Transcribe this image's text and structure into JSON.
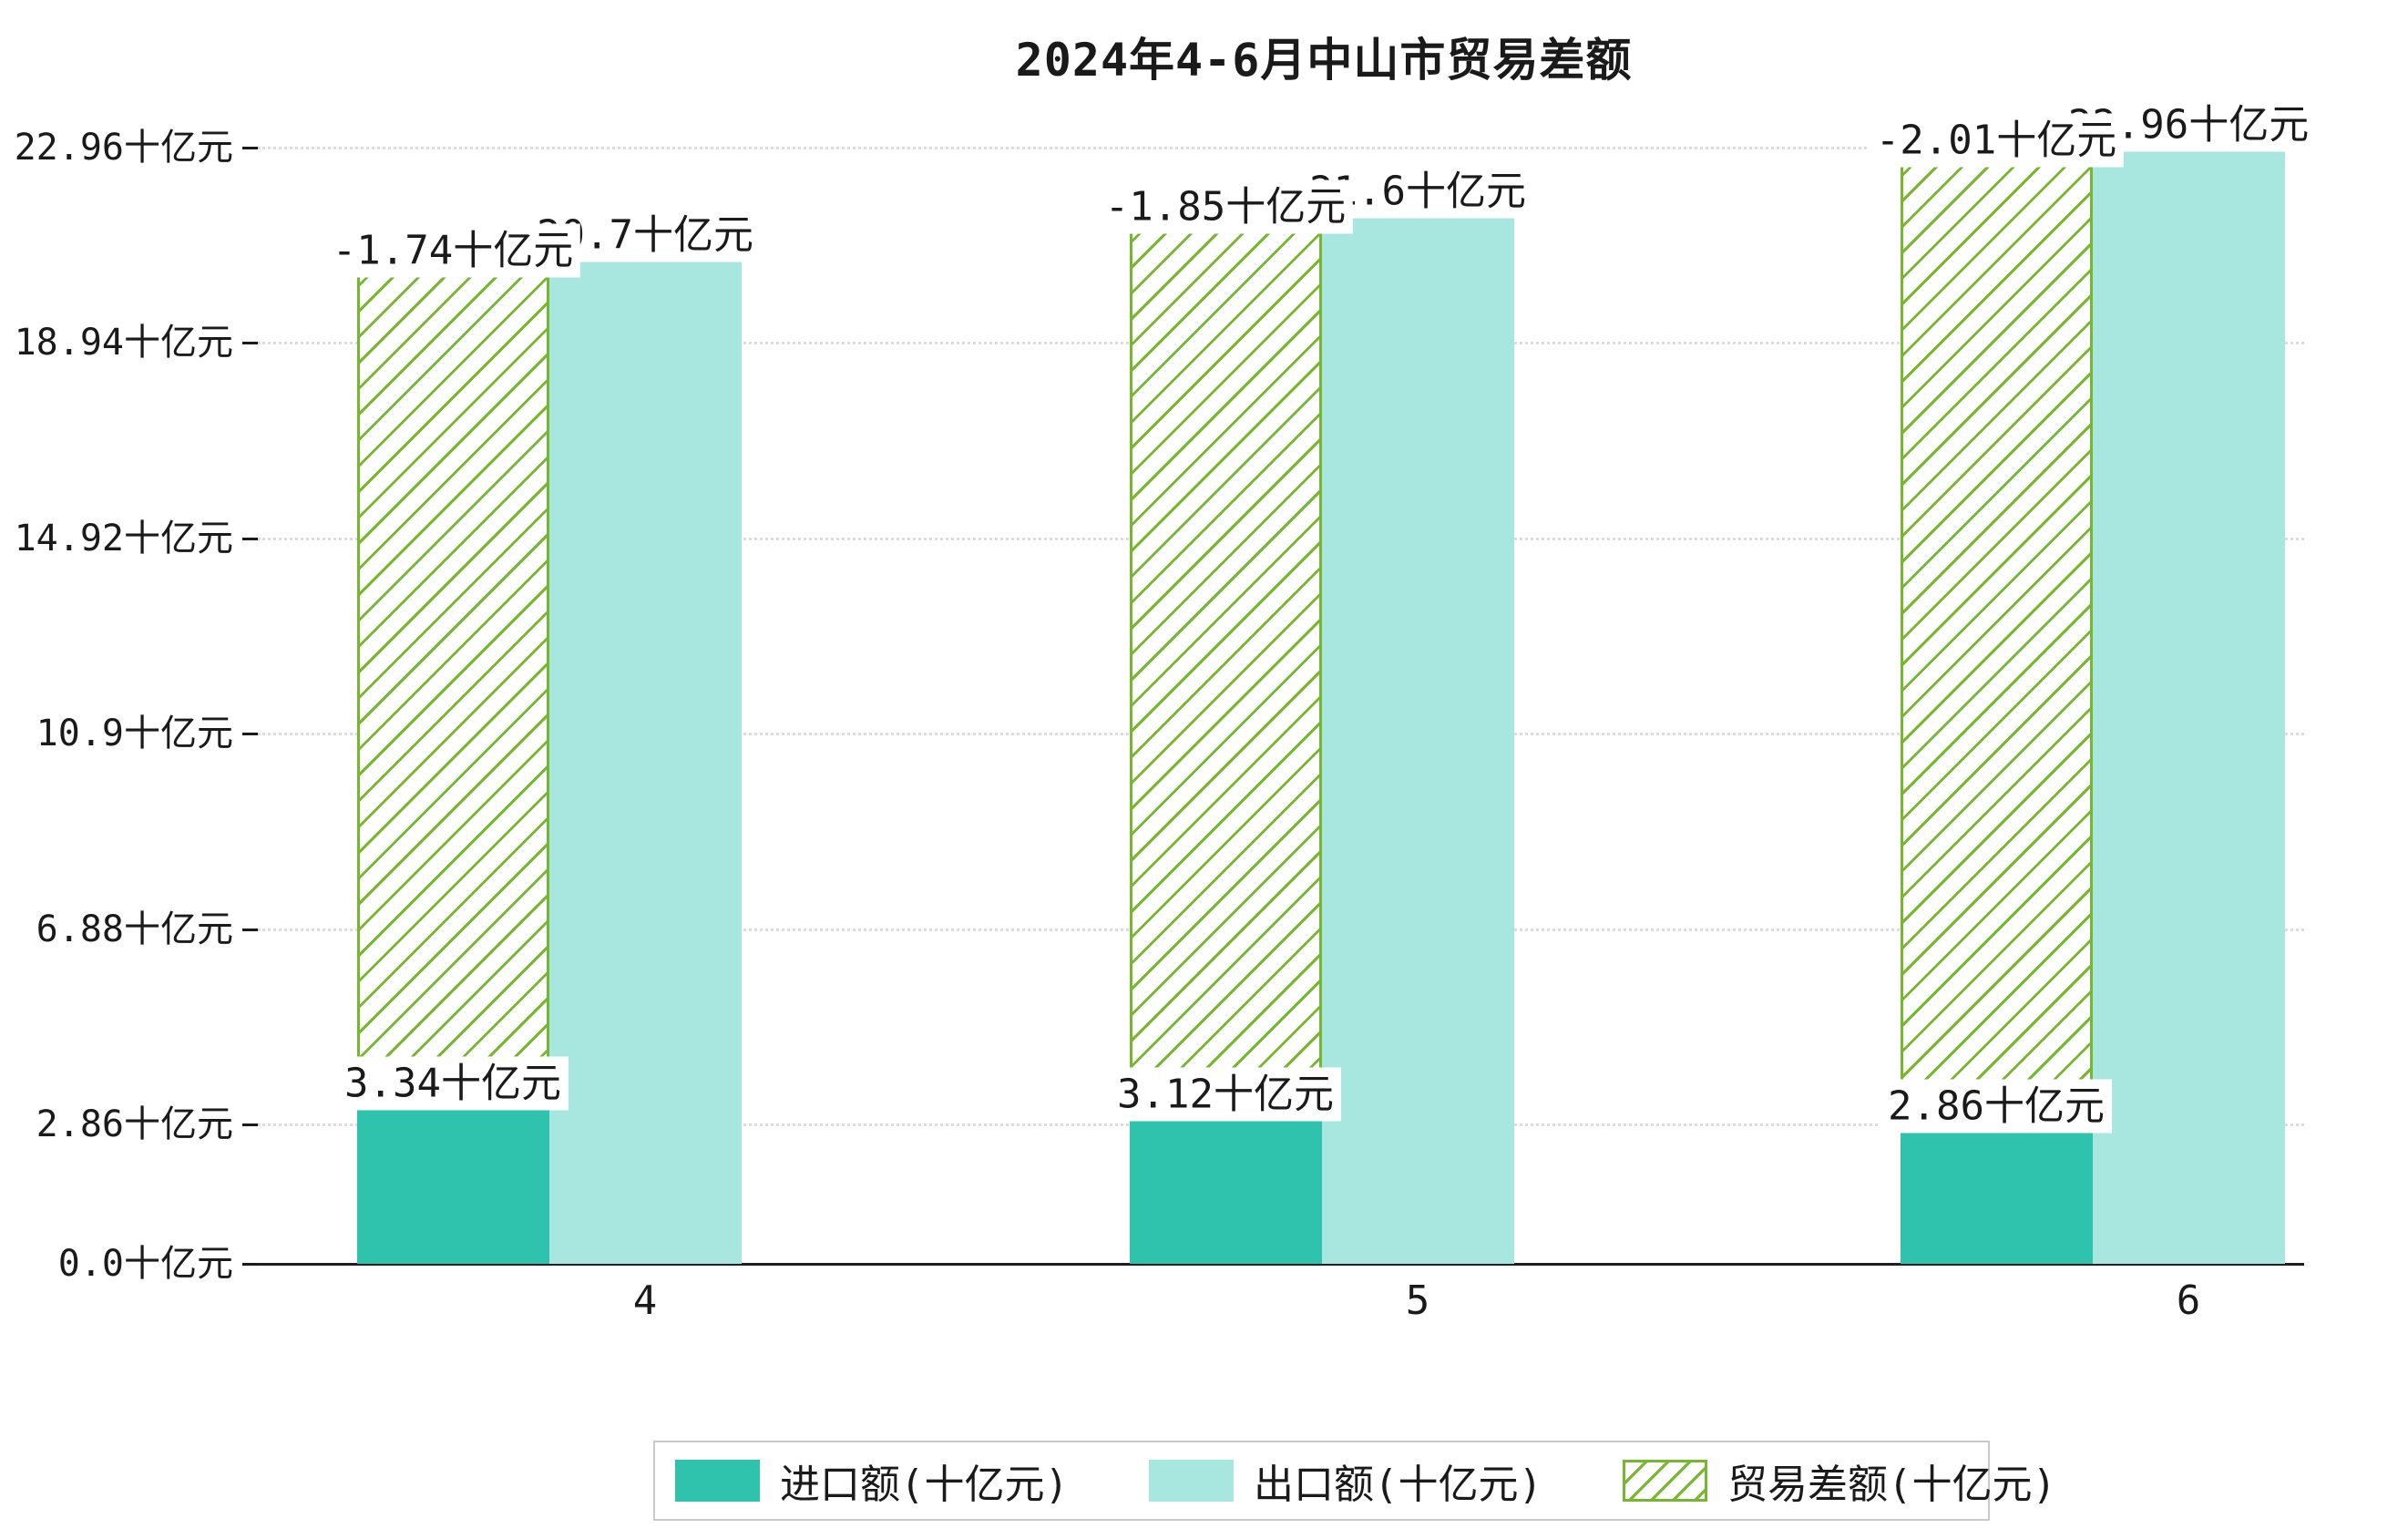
{
  "chart_data": {
    "type": "bar",
    "title": "2024年4-6月中山市贸易差额",
    "categories": [
      "4",
      "5",
      "6"
    ],
    "unit": "十亿元",
    "series": [
      {
        "name": "进口额(十亿元)",
        "key": "import",
        "values": [
          3.34,
          3.12,
          2.86
        ],
        "color": "#2fc2ad",
        "style": "solid"
      },
      {
        "name": "出口额(十亿元)",
        "key": "export",
        "values": [
          20.7,
          21.6,
          22.96
        ],
        "color": "#a8e7df",
        "style": "solid"
      },
      {
        "name": "贸易差额(十亿元)",
        "key": "trade_balance",
        "values": [
          -1.74,
          -1.85,
          -2.01
        ],
        "color": "#76b72f",
        "style": "hatched"
      }
    ],
    "value_labels": {
      "import": [
        "3.34十亿元",
        "3.12十亿元",
        "2.86十亿元"
      ],
      "export": [
        "20.7十亿元",
        "21.6十亿元",
        "22.96十亿元"
      ],
      "trade_balance": [
        "-1.74十亿元",
        "-1.85十亿元",
        "-2.01十亿元"
      ]
    },
    "y_axis": {
      "tick_labels": [
        "0.0十亿元",
        "2.86十亿元",
        "6.88十亿元",
        "10.9十亿元",
        "14.92十亿元",
        "18.94十亿元",
        "22.96十亿元"
      ],
      "tick_values": [
        0.0,
        2.86,
        6.88,
        10.9,
        14.92,
        18.94,
        22.96
      ],
      "ylim": [
        0,
        22.96
      ],
      "grid": "dotted-horizontal"
    },
    "x_axis": {
      "tick_labels": [
        "4",
        "5",
        "6"
      ]
    },
    "legend_position": "bottom"
  }
}
